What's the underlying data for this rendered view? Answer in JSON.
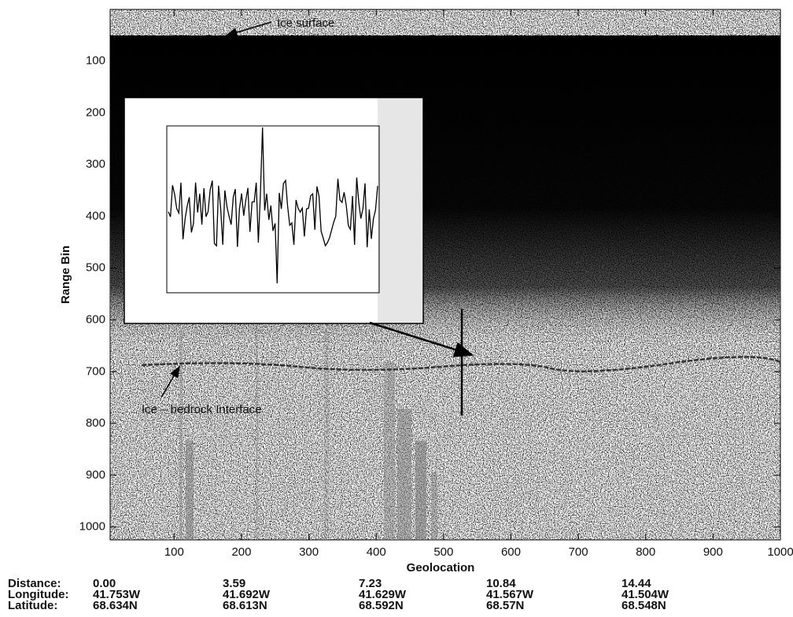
{
  "chart_data": {
    "type": "echogram",
    "xlabel": "Geolocation",
    "ylabel": "Range Bin",
    "xlim": [
      5,
      1000
    ],
    "ylim": [
      0,
      1025
    ],
    "y_inverted": true,
    "xticks": [
      100,
      200,
      300,
      400,
      500,
      600,
      700,
      800,
      900,
      1000
    ],
    "yticks": [
      100,
      200,
      300,
      400,
      500,
      600,
      700,
      800,
      900,
      1000
    ],
    "annotations": [
      "Ice surface",
      "Ice – bedrock Interface"
    ]
  },
  "geolocation_table": {
    "row_labels": [
      "Distance:",
      "Longitude:",
      "Latitude:"
    ],
    "rows": [
      [
        "0.00",
        "3.59",
        "7.23",
        "10.84",
        "14.44"
      ],
      [
        "41.753W",
        "41.692W",
        "41.629W",
        "41.567W",
        "41.504W"
      ],
      [
        "68.634N",
        "68.613N",
        "68.592N",
        "68.57N",
        "68.548N"
      ]
    ]
  }
}
